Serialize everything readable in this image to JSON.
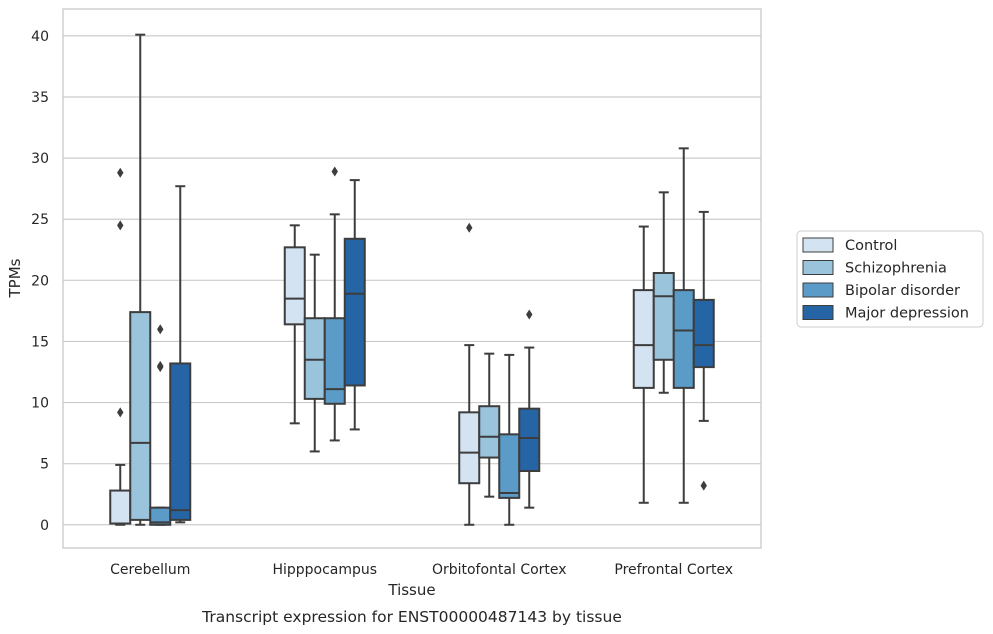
{
  "chart_data": {
    "type": "box",
    "caption": "Transcript expression for ENST00000487143 by tissue",
    "xlabel": "Tissue",
    "ylabel": "TPMs",
    "ylim": [
      -1.9,
      42.2
    ],
    "yticks": [
      0,
      5,
      10,
      15,
      20,
      25,
      30,
      35,
      40
    ],
    "grid": "horizontal",
    "legend_position": "right",
    "categories": [
      "Cerebellum",
      "Hipppocampus",
      "Orbitofontal Cortex",
      "Prefrontal Cortex"
    ],
    "series": [
      {
        "name": "Control",
        "color": "#d3e3f2",
        "boxes": [
          {
            "whislo": 0.0,
            "q1": 0.1,
            "med": 0.1,
            "q3": 2.8,
            "whishi": 4.9,
            "fliers": [
              9.2,
              24.5,
              28.8
            ]
          },
          {
            "whislo": 8.3,
            "q1": 16.4,
            "med": 18.5,
            "q3": 22.7,
            "whishi": 24.5,
            "fliers": []
          },
          {
            "whislo": 0.0,
            "q1": 3.4,
            "med": 5.9,
            "q3": 9.2,
            "whishi": 14.7,
            "fliers": [
              24.3
            ]
          },
          {
            "whislo": 1.8,
            "q1": 11.2,
            "med": 14.7,
            "q3": 19.2,
            "whishi": 24.4,
            "fliers": []
          }
        ]
      },
      {
        "name": "Schizophrenia",
        "color": "#9ac3dc",
        "boxes": [
          {
            "whislo": 0.0,
            "q1": 0.4,
            "med": 6.7,
            "q3": 17.4,
            "whishi": 40.1,
            "fliers": []
          },
          {
            "whislo": 6.0,
            "q1": 10.3,
            "med": 13.5,
            "q3": 16.9,
            "whishi": 22.1,
            "fliers": []
          },
          {
            "whislo": 2.3,
            "q1": 5.5,
            "med": 7.2,
            "q3": 9.7,
            "whishi": 14.0,
            "fliers": []
          },
          {
            "whislo": 10.8,
            "q1": 13.5,
            "med": 18.7,
            "q3": 20.6,
            "whishi": 27.2,
            "fliers": []
          }
        ]
      },
      {
        "name": "Bipolar disorder",
        "color": "#5a9bc8",
        "boxes": [
          {
            "whislo": 0.0,
            "q1": 0.0,
            "med": 0.2,
            "q3": 1.4,
            "whishi": 1.4,
            "fliers": [
              12.9,
              13.0,
              16.0
            ]
          },
          {
            "whislo": 6.9,
            "q1": 9.9,
            "med": 11.1,
            "q3": 16.9,
            "whishi": 25.4,
            "fliers": [
              28.9
            ]
          },
          {
            "whislo": 0.0,
            "q1": 2.2,
            "med": 2.6,
            "q3": 7.4,
            "whishi": 13.9,
            "fliers": []
          },
          {
            "whislo": 1.8,
            "q1": 11.2,
            "med": 15.9,
            "q3": 19.2,
            "whishi": 30.8,
            "fliers": []
          }
        ]
      },
      {
        "name": "Major depression",
        "color": "#2565a6",
        "boxes": [
          {
            "whislo": 0.2,
            "q1": 0.4,
            "med": 1.2,
            "q3": 13.2,
            "whishi": 27.7,
            "fliers": []
          },
          {
            "whislo": 7.8,
            "q1": 11.4,
            "med": 18.9,
            "q3": 23.4,
            "whishi": 28.2,
            "fliers": []
          },
          {
            "whislo": 1.4,
            "q1": 4.4,
            "med": 7.1,
            "q3": 9.5,
            "whishi": 14.5,
            "fliers": [
              17.2
            ]
          },
          {
            "whislo": 8.5,
            "q1": 12.9,
            "med": 14.7,
            "q3": 18.4,
            "whishi": 25.6,
            "fliers": [
              3.2
            ]
          }
        ]
      }
    ]
  }
}
